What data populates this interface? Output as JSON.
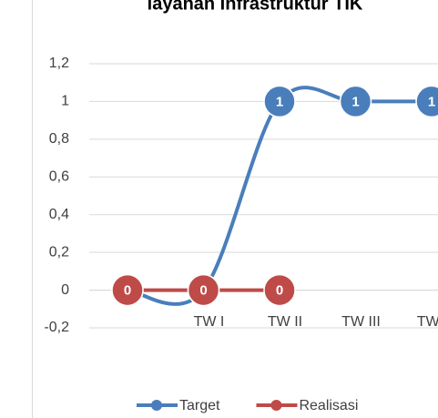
{
  "chart_data": {
    "type": "line",
    "title": "layanan Infrastruktur TIK",
    "categories": [
      null,
      "TW I",
      "TW II",
      "TW III",
      "TW IV"
    ],
    "series": [
      {
        "name": "Target",
        "color": "#4a7ebb",
        "values": [
          0,
          0,
          1,
          1,
          1
        ]
      },
      {
        "name": "Realisasi",
        "color": "#be4b48",
        "values": [
          0,
          0,
          0,
          null,
          null
        ]
      }
    ],
    "ylim": [
      -0.2,
      1.2
    ],
    "yticks": [
      {
        "value": -0.2,
        "label": "-0,2"
      },
      0,
      {
        "value": 0.2,
        "label": "0,2"
      },
      {
        "value": 0.4,
        "label": "0,4"
      },
      {
        "value": 0.6,
        "label": "0,6"
      },
      {
        "value": 0.8,
        "label": "0,8"
      },
      1,
      {
        "value": 1.2,
        "label": "1,2"
      }
    ],
    "grid": true,
    "smooth": true,
    "legend": "bottom"
  }
}
